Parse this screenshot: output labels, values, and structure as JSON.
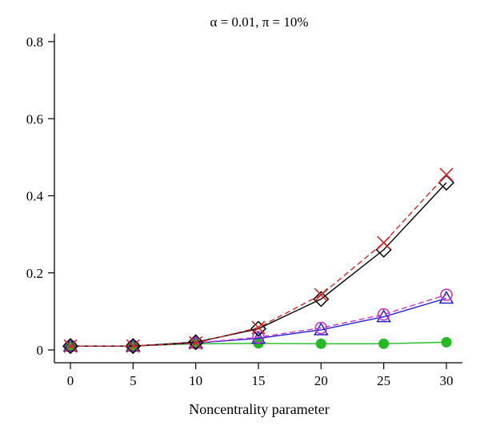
{
  "chart_data": {
    "type": "line",
    "title": "α = 0.01, π = 10%",
    "xlabel": "Noncentrality parameter",
    "ylabel": "",
    "x": [
      0,
      5,
      10,
      15,
      20,
      25,
      30
    ],
    "xlim": [
      0,
      30
    ],
    "ylim": [
      0,
      0.8
    ],
    "xticks": [
      "0",
      "5",
      "10",
      "15",
      "20",
      "25",
      "30"
    ],
    "yticks": [
      "0",
      "0.2",
      "0.4",
      "0.6",
      "0.8"
    ],
    "grid": false,
    "legend": "none",
    "series": [
      {
        "marker": "cross",
        "line_style": "dashed",
        "color": "#dd2222",
        "values": [
          0.01,
          0.01,
          0.018,
          0.058,
          0.143,
          0.278,
          0.455
        ]
      },
      {
        "marker": "diamond",
        "line_style": "solid",
        "color": "#000000",
        "values": [
          0.01,
          0.01,
          0.02,
          0.055,
          0.132,
          0.26,
          0.434
        ]
      },
      {
        "marker": "circle-open",
        "line_style": "dashed",
        "color": "#cc33cc",
        "values": [
          0.01,
          0.01,
          0.018,
          0.033,
          0.057,
          0.092,
          0.143
        ]
      },
      {
        "marker": "triangle",
        "line_style": "solid",
        "color": "#2222cc",
        "values": [
          0.01,
          0.01,
          0.018,
          0.03,
          0.052,
          0.086,
          0.134
        ]
      },
      {
        "marker": "circle-filled",
        "line_style": "solid",
        "color": "#22bb22",
        "values": [
          0.01,
          0.01,
          0.016,
          0.017,
          0.016,
          0.016,
          0.02
        ]
      }
    ]
  }
}
